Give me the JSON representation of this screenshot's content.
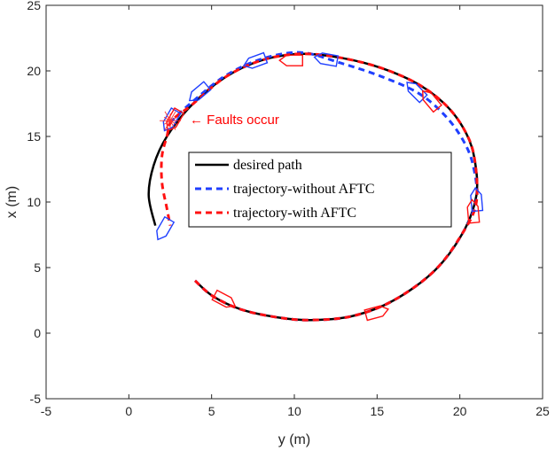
{
  "chart_data": {
    "type": "line",
    "title": "",
    "xlabel": "y (m)",
    "ylabel": "x (m)",
    "xlim": [
      -5,
      25
    ],
    "ylim": [
      -5,
      25
    ],
    "xticks": [
      "-5",
      "0",
      "5",
      "10",
      "15",
      "20",
      "25"
    ],
    "yticks": [
      "-5",
      "0",
      "5",
      "10",
      "15",
      "20",
      "25"
    ],
    "legend_position": "center",
    "annotation": {
      "text": "← Faults occur",
      "at": [
        2.5,
        16.2
      ],
      "color": "#ff0000"
    },
    "series": [
      {
        "name": "desired path",
        "style": "solid",
        "color": "#000000",
        "x": [
          4.0,
          5.1,
          6.8,
          9.0,
          11.0,
          13.5,
          16.0,
          18.5,
          20.2,
          21.0,
          20.9,
          20.4,
          19.3,
          17.6,
          15.3,
          12.8,
          10.4,
          8.0,
          5.8,
          3.8,
          2.3,
          1.5,
          1.2,
          1.6
        ],
        "y": [
          4.0,
          2.8,
          1.8,
          1.2,
          1.0,
          1.3,
          2.5,
          4.8,
          7.7,
          10.5,
          13.2,
          15.2,
          17.2,
          18.9,
          20.2,
          21.0,
          21.3,
          20.8,
          19.5,
          17.4,
          15.0,
          12.8,
          10.5,
          8.2
        ]
      },
      {
        "name": "trajectory-without AFTC",
        "style": "dashed",
        "color": "#1f3fff",
        "x": [
          4.0,
          5.1,
          6.8,
          9.0,
          11.0,
          13.5,
          16.0,
          18.5,
          20.2,
          21.0,
          20.8,
          20.2,
          19.1,
          17.5,
          15.2,
          12.8,
          10.4,
          8.0,
          5.8,
          3.8,
          2.6
        ],
        "y": [
          4.0,
          2.8,
          1.8,
          1.2,
          1.0,
          1.3,
          2.5,
          4.8,
          7.7,
          10.2,
          12.8,
          14.7,
          16.6,
          18.3,
          19.6,
          20.6,
          21.4,
          20.9,
          19.6,
          17.6,
          16.2
        ]
      },
      {
        "name": "trajectory-with AFTC",
        "style": "dashed",
        "color": "#ff1111",
        "x": [
          4.0,
          5.1,
          6.8,
          9.0,
          11.0,
          13.5,
          16.0,
          18.5,
          20.2,
          21.0,
          20.9,
          20.4,
          19.3,
          17.6,
          15.3,
          12.8,
          10.4,
          8.0,
          5.8,
          3.8,
          2.6,
          2.3,
          2.0,
          2.0,
          2.3,
          2.5
        ],
        "y": [
          4.0,
          2.8,
          1.8,
          1.2,
          1.0,
          1.3,
          2.5,
          4.8,
          7.7,
          10.0,
          13.2,
          15.2,
          17.2,
          18.9,
          20.2,
          21.0,
          21.3,
          20.8,
          19.5,
          17.4,
          16.2,
          15.0,
          13.5,
          11.5,
          9.5,
          8.2
        ]
      }
    ],
    "vehicle_markers": {
      "with_AFTC": [
        {
          "pos": [
            5.8,
            2.5
          ],
          "heading_deg": -28
        },
        {
          "pos": [
            15.0,
            1.6
          ],
          "heading_deg": 15
        },
        {
          "pos": [
            20.8,
            9.3
          ],
          "heading_deg": 95
        },
        {
          "pos": [
            18.2,
            17.8
          ],
          "heading_deg": 130
        },
        {
          "pos": [
            9.8,
            20.8
          ],
          "heading_deg": 180
        },
        {
          "pos": [
            2.7,
            16.2
          ],
          "heading_deg": 240
        }
      ],
      "without_AFTC": [
        {
          "pos": [
            21.0,
            10.2
          ],
          "heading_deg": 95
        },
        {
          "pos": [
            17.3,
            18.5
          ],
          "heading_deg": 135
        },
        {
          "pos": [
            11.9,
            20.9
          ],
          "heading_deg": 170
        },
        {
          "pos": [
            7.6,
            20.7
          ],
          "heading_deg": 200
        },
        {
          "pos": [
            4.2,
            18.3
          ],
          "heading_deg": 220
        },
        {
          "pos": [
            2.5,
            16.2
          ],
          "heading_deg": 240
        },
        {
          "pos": [
            2.1,
            7.9
          ],
          "heading_deg": 240
        }
      ]
    }
  }
}
